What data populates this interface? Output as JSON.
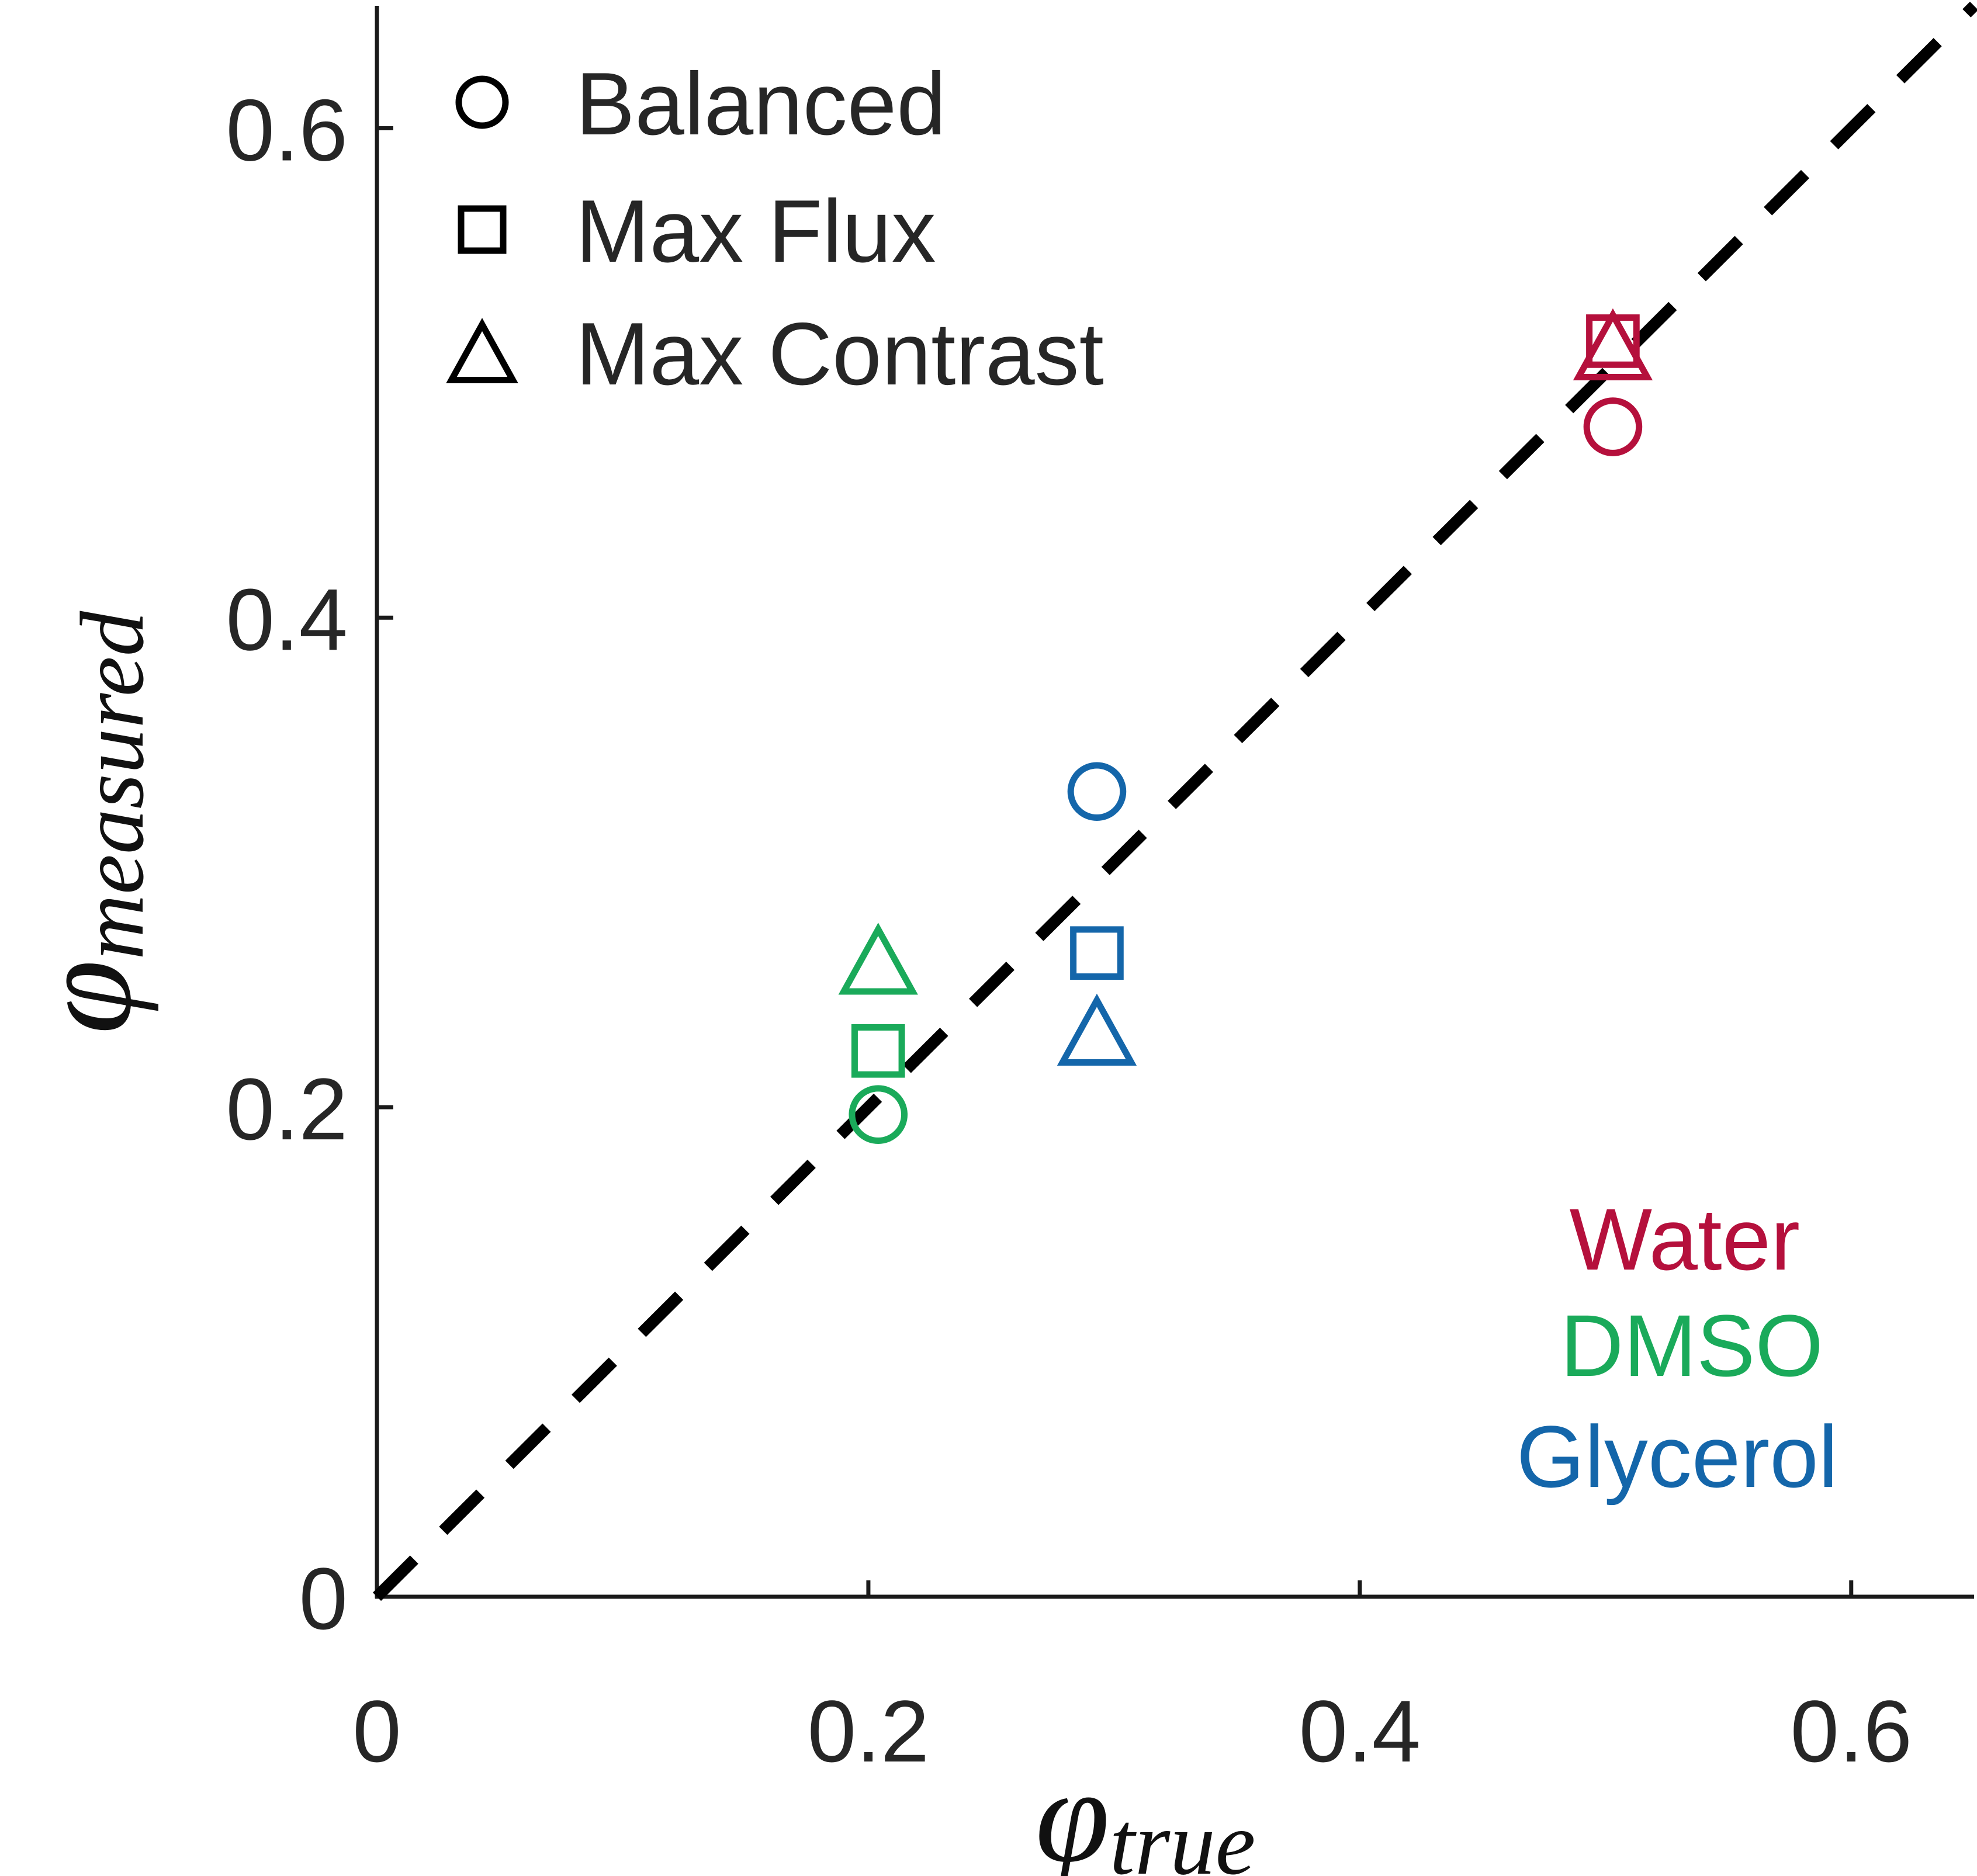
{
  "chart_data": {
    "type": "scatter",
    "xlabel": {
      "symbol": "φ",
      "subscript": "true"
    },
    "ylabel": {
      "symbol": "φ",
      "subscript": "measured"
    },
    "xlim": [
      0,
      0.65
    ],
    "ylim": [
      0,
      0.65
    ],
    "x_ticks": [
      0,
      0.2,
      0.4,
      0.6
    ],
    "x_tick_labels": [
      "0",
      "0.2",
      "0.4",
      "0.6"
    ],
    "y_ticks": [
      0,
      0.2,
      0.4,
      0.6
    ],
    "y_tick_labels": [
      "0",
      "0.2",
      "0.4",
      "0.6"
    ],
    "grid": false,
    "reference_line": {
      "style": "dashed",
      "color": "#000000",
      "from": [
        0,
        0
      ],
      "to": [
        0.65,
        0.65
      ]
    },
    "marker_legend": {
      "placement": "top-left",
      "entries": [
        {
          "marker": "circle",
          "label": "Balanced"
        },
        {
          "marker": "square",
          "label": "Max Flux"
        },
        {
          "marker": "triangle",
          "label": "Max Contrast"
        }
      ]
    },
    "color_legend": {
      "placement": "bottom-right",
      "entries": [
        {
          "label": "Water",
          "color": "#b5103c"
        },
        {
          "label": "DMSO",
          "color": "#1aaa5a"
        },
        {
          "label": "Glycerol",
          "color": "#1466aa"
        }
      ]
    },
    "series": [
      {
        "name": "Water",
        "color": "#b5103c",
        "points": [
          {
            "marker": "circle",
            "x": 0.503,
            "y": 0.478
          },
          {
            "marker": "square",
            "x": 0.503,
            "y": 0.513
          },
          {
            "marker": "triangle",
            "x": 0.503,
            "y": 0.511
          }
        ]
      },
      {
        "name": "DMSO",
        "color": "#1aaa5a",
        "points": [
          {
            "marker": "circle",
            "x": 0.204,
            "y": 0.197
          },
          {
            "marker": "square",
            "x": 0.204,
            "y": 0.223
          },
          {
            "marker": "triangle",
            "x": 0.204,
            "y": 0.26
          }
        ]
      },
      {
        "name": "Glycerol",
        "color": "#1466aa",
        "points": [
          {
            "marker": "circle",
            "x": 0.293,
            "y": 0.329
          },
          {
            "marker": "square",
            "x": 0.293,
            "y": 0.263
          },
          {
            "marker": "triangle",
            "x": 0.293,
            "y": 0.231
          }
        ]
      }
    ]
  }
}
